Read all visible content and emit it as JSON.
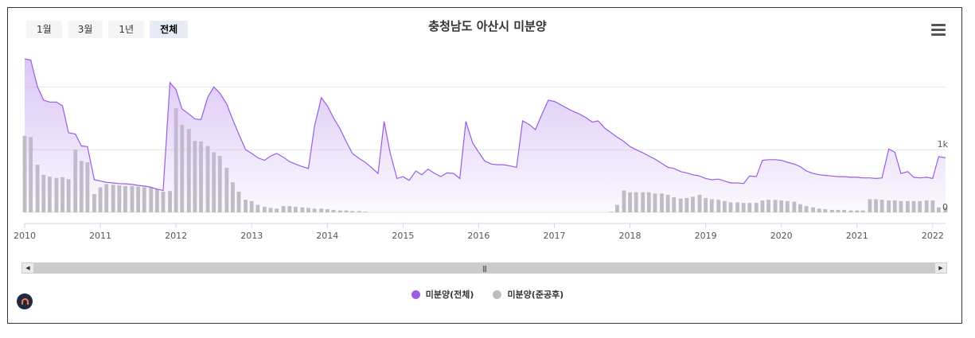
{
  "range_buttons": [
    {
      "label": "1월",
      "active": false
    },
    {
      "label": "3월",
      "active": false
    },
    {
      "label": "1년",
      "active": false
    },
    {
      "label": "전체",
      "active": true
    }
  ],
  "legend": [
    {
      "label": "미분양(전체)",
      "color": "#9a5ce6"
    },
    {
      "label": "미분양(준공후)",
      "color": "#bdbdbd"
    }
  ],
  "colors": {
    "line": "#9a5ce6",
    "area_top": "#cdb3f2",
    "bars": "#bdbdbd",
    "grid": "#e6e6e6"
  },
  "icons": {
    "menu": "hamburger-menu-icon",
    "logo": "house-logo-icon"
  },
  "chart_data": {
    "type": "line",
    "title": "충청남도 아산시 미분양",
    "x_ticks": [
      "2010",
      "2011",
      "2012",
      "2013",
      "2014",
      "2015",
      "2016",
      "2017",
      "2018",
      "2019",
      "2020",
      "2021",
      "2022"
    ],
    "y_ticks": [
      "0",
      "1k"
    ],
    "x_range": [
      2010.0,
      2022.17
    ],
    "y_range": [
      0,
      2500
    ],
    "series": [
      {
        "name": "미분양(전체)",
        "type": "area-line",
        "points": [
          [
            2010.0,
            2450
          ],
          [
            2010.08,
            2430
          ],
          [
            2010.17,
            2000
          ],
          [
            2010.25,
            1790
          ],
          [
            2010.33,
            1760
          ],
          [
            2010.42,
            1760
          ],
          [
            2010.5,
            1700
          ],
          [
            2010.58,
            1270
          ],
          [
            2010.67,
            1250
          ],
          [
            2010.75,
            1060
          ],
          [
            2010.83,
            1050
          ],
          [
            2010.92,
            520
          ],
          [
            2011.0,
            500
          ],
          [
            2011.08,
            480
          ],
          [
            2011.17,
            470
          ],
          [
            2011.25,
            460
          ],
          [
            2011.33,
            455
          ],
          [
            2011.42,
            445
          ],
          [
            2011.5,
            430
          ],
          [
            2011.58,
            420
          ],
          [
            2011.67,
            400
          ],
          [
            2011.75,
            370
          ],
          [
            2011.83,
            350
          ],
          [
            2011.92,
            2070
          ],
          [
            2012.0,
            1960
          ],
          [
            2012.08,
            1650
          ],
          [
            2012.17,
            1570
          ],
          [
            2012.25,
            1490
          ],
          [
            2012.33,
            1480
          ],
          [
            2012.42,
            1840
          ],
          [
            2012.5,
            2000
          ],
          [
            2012.58,
            1900
          ],
          [
            2012.67,
            1730
          ],
          [
            2012.75,
            1480
          ],
          [
            2012.83,
            1250
          ],
          [
            2012.92,
            1000
          ],
          [
            2013.0,
            940
          ],
          [
            2013.08,
            870
          ],
          [
            2013.17,
            830
          ],
          [
            2013.25,
            900
          ],
          [
            2013.33,
            940
          ],
          [
            2013.42,
            880
          ],
          [
            2013.5,
            810
          ],
          [
            2013.58,
            770
          ],
          [
            2013.67,
            730
          ],
          [
            2013.75,
            700
          ],
          [
            2013.83,
            1370
          ],
          [
            2013.92,
            1830
          ],
          [
            2014.0,
            1700
          ],
          [
            2014.08,
            1510
          ],
          [
            2014.17,
            1330
          ],
          [
            2014.25,
            1130
          ],
          [
            2014.33,
            940
          ],
          [
            2014.42,
            860
          ],
          [
            2014.5,
            800
          ],
          [
            2014.58,
            720
          ],
          [
            2014.67,
            620
          ],
          [
            2014.75,
            1450
          ],
          [
            2014.83,
            950
          ],
          [
            2014.92,
            540
          ],
          [
            2015.0,
            570
          ],
          [
            2015.08,
            510
          ],
          [
            2015.17,
            660
          ],
          [
            2015.25,
            600
          ],
          [
            2015.33,
            690
          ],
          [
            2015.42,
            620
          ],
          [
            2015.5,
            570
          ],
          [
            2015.58,
            630
          ],
          [
            2015.67,
            620
          ],
          [
            2015.75,
            540
          ],
          [
            2015.83,
            1450
          ],
          [
            2015.92,
            1110
          ],
          [
            2016.0,
            960
          ],
          [
            2016.08,
            820
          ],
          [
            2016.17,
            770
          ],
          [
            2016.25,
            760
          ],
          [
            2016.33,
            760
          ],
          [
            2016.42,
            740
          ],
          [
            2016.5,
            720
          ],
          [
            2016.58,
            1460
          ],
          [
            2016.67,
            1400
          ],
          [
            2016.75,
            1320
          ],
          [
            2016.83,
            1550
          ],
          [
            2016.92,
            1790
          ],
          [
            2017.0,
            1770
          ],
          [
            2017.08,
            1720
          ],
          [
            2017.17,
            1660
          ],
          [
            2017.25,
            1610
          ],
          [
            2017.33,
            1570
          ],
          [
            2017.42,
            1510
          ],
          [
            2017.5,
            1440
          ],
          [
            2017.58,
            1460
          ],
          [
            2017.67,
            1340
          ],
          [
            2017.75,
            1270
          ],
          [
            2017.83,
            1200
          ],
          [
            2017.92,
            1130
          ],
          [
            2018.0,
            1050
          ],
          [
            2018.08,
            1000
          ],
          [
            2018.17,
            950
          ],
          [
            2018.25,
            900
          ],
          [
            2018.33,
            850
          ],
          [
            2018.42,
            780
          ],
          [
            2018.5,
            720
          ],
          [
            2018.58,
            700
          ],
          [
            2018.67,
            650
          ],
          [
            2018.75,
            630
          ],
          [
            2018.83,
            600
          ],
          [
            2018.92,
            580
          ],
          [
            2019.0,
            540
          ],
          [
            2019.08,
            520
          ],
          [
            2019.17,
            530
          ],
          [
            2019.25,
            500
          ],
          [
            2019.33,
            470
          ],
          [
            2019.42,
            470
          ],
          [
            2019.5,
            460
          ],
          [
            2019.58,
            580
          ],
          [
            2019.67,
            570
          ],
          [
            2019.75,
            830
          ],
          [
            2019.83,
            840
          ],
          [
            2019.92,
            840
          ],
          [
            2020.0,
            830
          ],
          [
            2020.08,
            800
          ],
          [
            2020.17,
            770
          ],
          [
            2020.25,
            730
          ],
          [
            2020.33,
            660
          ],
          [
            2020.42,
            620
          ],
          [
            2020.5,
            600
          ],
          [
            2020.58,
            590
          ],
          [
            2020.67,
            580
          ],
          [
            2020.75,
            570
          ],
          [
            2020.83,
            570
          ],
          [
            2020.92,
            560
          ],
          [
            2021.0,
            560
          ],
          [
            2021.08,
            550
          ],
          [
            2021.17,
            550
          ],
          [
            2021.25,
            540
          ],
          [
            2021.33,
            550
          ],
          [
            2021.42,
            1010
          ],
          [
            2021.5,
            960
          ],
          [
            2021.58,
            620
          ],
          [
            2021.67,
            650
          ],
          [
            2021.75,
            560
          ],
          [
            2021.83,
            550
          ],
          [
            2021.92,
            560
          ],
          [
            2022.0,
            540
          ],
          [
            2022.08,
            890
          ],
          [
            2022.17,
            870
          ]
        ]
      },
      {
        "name": "미분양(준공후)",
        "type": "bar",
        "points": [
          [
            2010.0,
            1220
          ],
          [
            2010.08,
            1200
          ],
          [
            2010.17,
            760
          ],
          [
            2010.25,
            600
          ],
          [
            2010.33,
            570
          ],
          [
            2010.42,
            550
          ],
          [
            2010.5,
            560
          ],
          [
            2010.58,
            530
          ],
          [
            2010.67,
            1000
          ],
          [
            2010.75,
            820
          ],
          [
            2010.83,
            800
          ],
          [
            2010.92,
            290
          ],
          [
            2011.0,
            400
          ],
          [
            2011.08,
            450
          ],
          [
            2011.17,
            440
          ],
          [
            2011.25,
            430
          ],
          [
            2011.33,
            420
          ],
          [
            2011.42,
            420
          ],
          [
            2011.5,
            410
          ],
          [
            2011.58,
            400
          ],
          [
            2011.67,
            390
          ],
          [
            2011.75,
            370
          ],
          [
            2011.83,
            330
          ],
          [
            2011.92,
            340
          ],
          [
            2012.0,
            1660
          ],
          [
            2012.08,
            1400
          ],
          [
            2012.17,
            1330
          ],
          [
            2012.25,
            1140
          ],
          [
            2012.33,
            1130
          ],
          [
            2012.42,
            1060
          ],
          [
            2012.5,
            960
          ],
          [
            2012.58,
            900
          ],
          [
            2012.67,
            710
          ],
          [
            2012.75,
            480
          ],
          [
            2012.83,
            330
          ],
          [
            2012.92,
            200
          ],
          [
            2013.0,
            180
          ],
          [
            2013.08,
            120
          ],
          [
            2013.17,
            90
          ],
          [
            2013.25,
            70
          ],
          [
            2013.33,
            60
          ],
          [
            2013.42,
            100
          ],
          [
            2013.5,
            100
          ],
          [
            2013.58,
            90
          ],
          [
            2013.67,
            80
          ],
          [
            2013.75,
            70
          ],
          [
            2013.83,
            60
          ],
          [
            2013.92,
            60
          ],
          [
            2014.0,
            50
          ],
          [
            2014.08,
            40
          ],
          [
            2014.17,
            30
          ],
          [
            2014.25,
            30
          ],
          [
            2014.33,
            20
          ],
          [
            2014.42,
            20
          ],
          [
            2014.5,
            10
          ],
          [
            2014.58,
            0
          ],
          [
            2014.67,
            0
          ],
          [
            2014.75,
            0
          ],
          [
            2014.83,
            0
          ],
          [
            2014.92,
            0
          ],
          [
            2015.0,
            0
          ],
          [
            2015.08,
            0
          ],
          [
            2015.17,
            0
          ],
          [
            2015.25,
            0
          ],
          [
            2015.33,
            0
          ],
          [
            2015.42,
            0
          ],
          [
            2015.5,
            0
          ],
          [
            2015.58,
            0
          ],
          [
            2015.67,
            0
          ],
          [
            2015.75,
            0
          ],
          [
            2015.83,
            0
          ],
          [
            2015.92,
            0
          ],
          [
            2016.0,
            0
          ],
          [
            2016.08,
            0
          ],
          [
            2016.17,
            0
          ],
          [
            2016.25,
            0
          ],
          [
            2016.33,
            0
          ],
          [
            2016.42,
            0
          ],
          [
            2016.5,
            0
          ],
          [
            2016.58,
            0
          ],
          [
            2016.67,
            0
          ],
          [
            2016.75,
            0
          ],
          [
            2016.83,
            0
          ],
          [
            2016.92,
            0
          ],
          [
            2017.0,
            0
          ],
          [
            2017.08,
            0
          ],
          [
            2017.17,
            0
          ],
          [
            2017.25,
            0
          ],
          [
            2017.33,
            0
          ],
          [
            2017.42,
            0
          ],
          [
            2017.5,
            0
          ],
          [
            2017.58,
            0
          ],
          [
            2017.67,
            0
          ],
          [
            2017.75,
            10
          ],
          [
            2017.83,
            120
          ],
          [
            2017.92,
            350
          ],
          [
            2018.0,
            320
          ],
          [
            2018.08,
            320
          ],
          [
            2018.17,
            320
          ],
          [
            2018.25,
            320
          ],
          [
            2018.33,
            300
          ],
          [
            2018.42,
            300
          ],
          [
            2018.5,
            280
          ],
          [
            2018.58,
            240
          ],
          [
            2018.67,
            220
          ],
          [
            2018.75,
            230
          ],
          [
            2018.83,
            250
          ],
          [
            2018.92,
            280
          ],
          [
            2019.0,
            230
          ],
          [
            2019.08,
            210
          ],
          [
            2019.17,
            200
          ],
          [
            2019.25,
            180
          ],
          [
            2019.33,
            160
          ],
          [
            2019.42,
            160
          ],
          [
            2019.5,
            150
          ],
          [
            2019.58,
            150
          ],
          [
            2019.67,
            150
          ],
          [
            2019.75,
            190
          ],
          [
            2019.83,
            200
          ],
          [
            2019.92,
            200
          ],
          [
            2020.0,
            190
          ],
          [
            2020.08,
            180
          ],
          [
            2020.17,
            170
          ],
          [
            2020.25,
            130
          ],
          [
            2020.33,
            100
          ],
          [
            2020.42,
            80
          ],
          [
            2020.5,
            60
          ],
          [
            2020.58,
            50
          ],
          [
            2020.67,
            40
          ],
          [
            2020.75,
            40
          ],
          [
            2020.83,
            40
          ],
          [
            2020.92,
            30
          ],
          [
            2021.0,
            30
          ],
          [
            2021.08,
            30
          ],
          [
            2021.17,
            210
          ],
          [
            2021.25,
            210
          ],
          [
            2021.33,
            200
          ],
          [
            2021.42,
            190
          ],
          [
            2021.5,
            190
          ],
          [
            2021.58,
            180
          ],
          [
            2021.67,
            180
          ],
          [
            2021.75,
            180
          ],
          [
            2021.83,
            180
          ],
          [
            2021.92,
            190
          ],
          [
            2022.0,
            190
          ],
          [
            2022.08,
            80
          ],
          [
            2022.17,
            80
          ]
        ]
      }
    ],
    "grid": true,
    "legend_position": "bottom-center"
  }
}
